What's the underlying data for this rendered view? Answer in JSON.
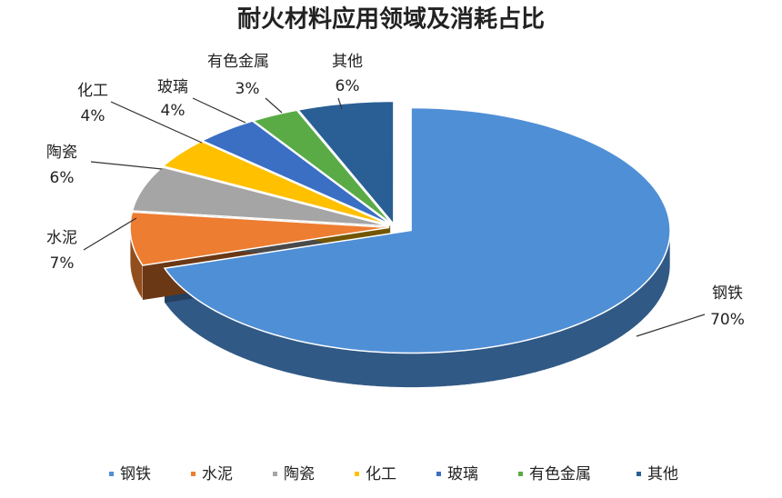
{
  "chart_data": {
    "type": "pie",
    "title": "耐火材料应用领域及消耗占比",
    "categories": [
      "钢铁",
      "水泥",
      "陶瓷",
      "化工",
      "玻璃",
      "有色金属",
      "其他"
    ],
    "values": [
      70,
      7,
      6,
      4,
      4,
      3,
      6
    ],
    "value_labels": [
      "70%",
      "7%",
      "6%",
      "4%",
      "4%",
      "3%",
      "6%"
    ],
    "colors": [
      "#4f8fd6",
      "#ed7d31",
      "#a5a5a5",
      "#ffc000",
      "#3a6fc4",
      "#5aab46",
      "#2a5f95"
    ],
    "legend": "bottom"
  }
}
